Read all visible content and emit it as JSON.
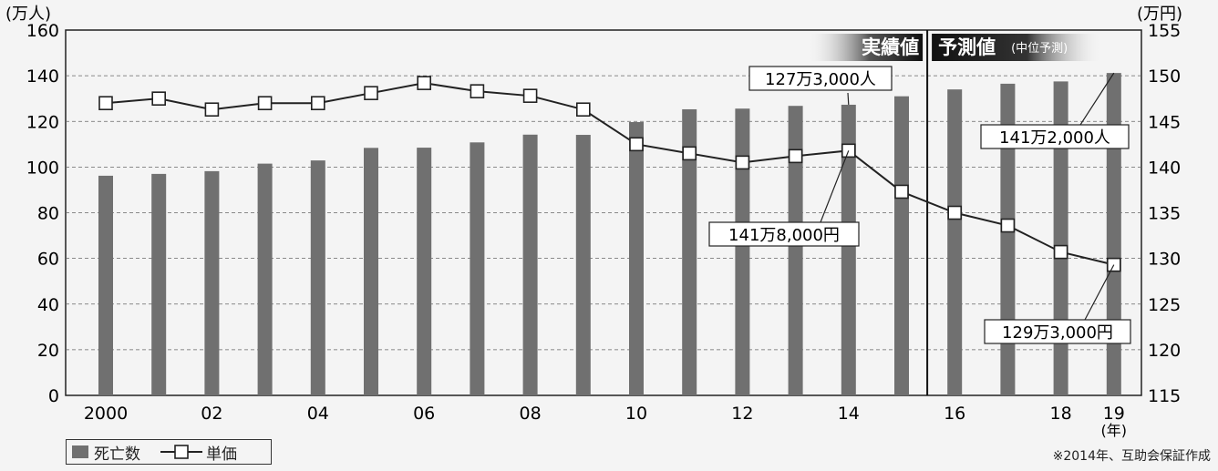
{
  "chart_data": {
    "type": "bar+line",
    "left_axis_unit": "(万人)",
    "right_axis_unit": "(万円)",
    "x_unit": "(年)",
    "left_ylim": [
      0,
      160
    ],
    "left_ticks": [
      0,
      20,
      40,
      60,
      80,
      100,
      120,
      140,
      160
    ],
    "right_ylim": [
      115,
      155
    ],
    "right_ticks": [
      115,
      120,
      125,
      130,
      135,
      140,
      145,
      150,
      155
    ],
    "years": [
      2000,
      2001,
      2002,
      2003,
      2004,
      2005,
      2006,
      2007,
      2008,
      2009,
      2010,
      2011,
      2012,
      2013,
      2014,
      2015,
      2016,
      2017,
      2018,
      2019
    ],
    "x_tick_labels": [
      {
        "year": 2000,
        "label": "2000"
      },
      {
        "year": 2002,
        "label": "02"
      },
      {
        "year": 2004,
        "label": "04"
      },
      {
        "year": 2006,
        "label": "06"
      },
      {
        "year": 2008,
        "label": "08"
      },
      {
        "year": 2010,
        "label": "10"
      },
      {
        "year": 2012,
        "label": "12"
      },
      {
        "year": 2014,
        "label": "14"
      },
      {
        "year": 2016,
        "label": "16"
      },
      {
        "year": 2018,
        "label": "18"
      },
      {
        "year": 2019,
        "label": "19"
      }
    ],
    "series": [
      {
        "name": "死亡数",
        "type": "bar",
        "axis": "left",
        "color": "#707070",
        "values": [
          96.2,
          97.0,
          98.2,
          101.5,
          102.9,
          108.4,
          108.5,
          110.8,
          114.2,
          114.1,
          119.7,
          125.3,
          125.6,
          126.8,
          127.3,
          131.0,
          134.0,
          136.5,
          137.5,
          141.2
        ]
      },
      {
        "name": "単価",
        "type": "line",
        "axis": "right",
        "color": "#222222",
        "values": [
          147.0,
          147.5,
          146.3,
          147.0,
          147.0,
          148.1,
          149.2,
          148.3,
          147.8,
          146.3,
          142.5,
          141.5,
          140.5,
          141.2,
          141.8,
          137.3,
          135.0,
          133.6,
          130.7,
          129.3
        ]
      }
    ],
    "annotations": [
      {
        "text": "127万3,000人",
        "year": 2014,
        "series": "死亡数"
      },
      {
        "text": "141万8,000円",
        "year": 2014,
        "series": "単価"
      },
      {
        "text": "141万2,000人",
        "year": 2019,
        "series": "死亡数"
      },
      {
        "text": "129万3,000円",
        "year": 2019,
        "series": "単価"
      }
    ],
    "regions": {
      "actual": "実績値",
      "forecast": "予測値",
      "forecast_note": "(中位予測)"
    },
    "grid": "horizontal dashed"
  },
  "legend": {
    "bar_label": "死亡数",
    "line_label": "単価"
  },
  "footnote": "※2014年、互助会保証作成",
  "colors": {
    "bar": "#707070",
    "line": "#222222",
    "background": "#f4f4f4"
  }
}
